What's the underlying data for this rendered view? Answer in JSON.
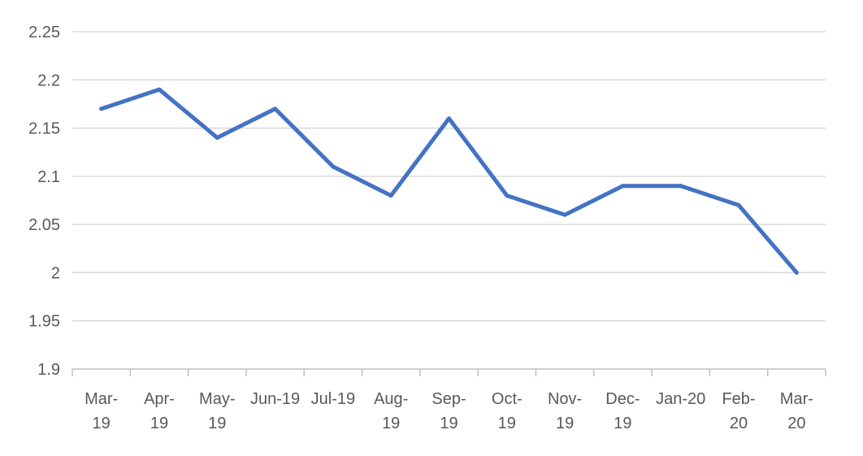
{
  "chart_data": {
    "type": "line",
    "title": "",
    "xlabel": "",
    "ylabel": "",
    "ylim": [
      1.9,
      2.25
    ],
    "y_ticks": [
      "1.9",
      "1.95",
      "2",
      "2.05",
      "2.1",
      "2.15",
      "2.2",
      "2.25"
    ],
    "categories": [
      [
        "Mar-",
        "19"
      ],
      [
        "Apr-",
        "19"
      ],
      [
        "May-",
        "19"
      ],
      [
        "Jun-19"
      ],
      [
        "Jul-19"
      ],
      [
        "Aug-",
        "19"
      ],
      [
        "Sep-",
        "19"
      ],
      [
        "Oct-",
        "19"
      ],
      [
        "Nov-",
        "19"
      ],
      [
        "Dec-",
        "19"
      ],
      [
        "Jan-20"
      ],
      [
        "Feb-",
        "20"
      ],
      [
        "Mar-",
        "20"
      ]
    ],
    "series": [
      {
        "values": [
          2.17,
          2.19,
          2.14,
          2.17,
          2.11,
          2.08,
          2.16,
          2.08,
          2.06,
          2.09,
          2.09,
          2.07,
          2.0
        ],
        "color": "#4472C4"
      }
    ],
    "grid": true,
    "legend": "none",
    "colors": {
      "gridline": "#D9D9D9",
      "axis": "#BFBFBF",
      "label": "#595959"
    }
  }
}
